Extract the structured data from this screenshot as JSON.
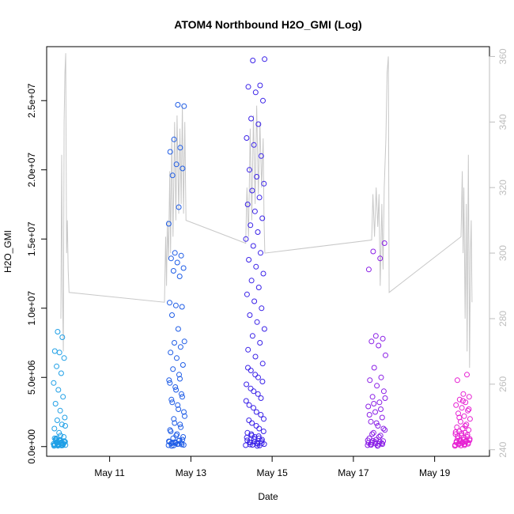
{
  "chart_data": {
    "type": "scatter",
    "title": "ATOM4 Northbound H2O_GMI (Log)",
    "xlabel": "Date",
    "ylabel": "H2O_GMI",
    "x_ticks": [
      "May 11",
      "May 13",
      "May 15",
      "May 17",
      "May 19"
    ],
    "x_tick_days": [
      11,
      13,
      15,
      17,
      19
    ],
    "xlim_days": [
      9.45,
      20.35
    ],
    "ylim": [
      -700000,
      28900000
    ],
    "y_ticks": [
      0,
      5000000,
      10000000,
      15000000,
      20000000,
      25000000
    ],
    "y_tick_labels": [
      "0.0e+00",
      "5.0e+06",
      "1.0e+07",
      "1.5e+07",
      "2.0e+07",
      "2.5e+07"
    ],
    "y2lim": [
      238,
      363
    ],
    "y2_ticks": [
      240,
      260,
      280,
      300,
      320,
      340,
      360
    ],
    "y2_tick_labels": [
      "240",
      "260",
      "280",
      "300",
      "320",
      "340",
      "360"
    ],
    "grid": false,
    "colors": {
      "flight1": "#1e9fe6",
      "flight2": "#1e5ce6",
      "flight3": "#3a22e8",
      "flight4": "#8a1ee6",
      "flight5": "#e61ed2",
      "line": "#c8c8c8",
      "frame": "#000000",
      "right_axis": "#bdbdbd"
    },
    "series": [
      {
        "color_key": "flight1",
        "day_range": [
          9.62,
          9.92
        ],
        "values": [
          200000,
          250000,
          300000,
          400000,
          500000,
          600000,
          150000,
          100000,
          350000,
          450000,
          550000,
          220000,
          180000,
          120000,
          80000,
          260000,
          320000,
          420000,
          150000,
          90000,
          60000,
          110000,
          300000,
          500000,
          700000,
          1000000,
          1300000,
          1600000,
          1900000,
          2100000,
          2600000,
          3100000,
          3600000,
          4100000,
          4600000,
          5300000,
          5800000,
          6400000,
          6800000,
          6900000,
          7900000,
          8300000,
          1500000,
          800000,
          400000,
          200000,
          100000,
          50000,
          300000,
          600000
        ]
      },
      {
        "color_key": "flight2",
        "day_range": [
          12.45,
          12.85
        ],
        "values": [
          100000,
          200000,
          300000,
          500000,
          800000,
          1200000,
          1600000,
          2000000,
          2500000,
          3000000,
          3400000,
          3800000,
          4300000,
          4800000,
          5200000,
          5600000,
          5900000,
          6400000,
          6800000,
          7200000,
          7500000,
          7600000,
          8500000,
          9500000,
          10100000,
          10200000,
          10400000,
          12300000,
          12700000,
          12900000,
          13300000,
          13600000,
          13800000,
          14000000,
          16100000,
          17300000,
          19600000,
          20100000,
          20400000,
          21300000,
          21600000,
          22200000,
          24600000,
          24700000,
          50000,
          150000,
          250000,
          350000,
          450000,
          600000,
          700000,
          900000,
          1100000,
          1400000,
          1700000,
          2200000,
          2700000,
          3200000,
          3600000,
          4100000,
          4600000,
          4900000,
          80000,
          120000,
          180000,
          220000,
          260000,
          320000,
          380000,
          420000
        ]
      },
      {
        "color_key": "flight3",
        "day_range": [
          14.35,
          14.82
        ],
        "values": [
          100000,
          200000,
          300000,
          500000,
          700000,
          1000000,
          1300000,
          1700000,
          2000000,
          2500000,
          3000000,
          3500000,
          4000000,
          4500000,
          5000000,
          5500000,
          6000000,
          6500000,
          7000000,
          7500000,
          8000000,
          8500000,
          9000000,
          9500000,
          10000000,
          10500000,
          11000000,
          11500000,
          12000000,
          12500000,
          13000000,
          13500000,
          14000000,
          14500000,
          15000000,
          15500000,
          16000000,
          16500000,
          17000000,
          17500000,
          18000000,
          18500000,
          19000000,
          19500000,
          20000000,
          21000000,
          21800000,
          22300000,
          23300000,
          23700000,
          25000000,
          25600000,
          26000000,
          26100000,
          27900000,
          28000000,
          50000,
          150000,
          250000,
          350000,
          450000,
          600000,
          800000,
          1100000,
          1500000,
          1900000,
          2300000,
          2800000,
          3300000,
          3800000,
          4200000,
          4700000,
          5200000,
          5700000,
          80000,
          120000,
          180000,
          240000,
          300000,
          400000,
          550000,
          650000,
          750000,
          900000
        ]
      },
      {
        "color_key": "flight4",
        "day_range": [
          17.35,
          17.8
        ],
        "values": [
          100000,
          200000,
          300000,
          400000,
          500000,
          600000,
          800000,
          1000000,
          1200000,
          1500000,
          1800000,
          2100000,
          2500000,
          2900000,
          3200000,
          3600000,
          4000000,
          4400000,
          4800000,
          5000000,
          5700000,
          6600000,
          7300000,
          7600000,
          7800000,
          8000000,
          12800000,
          13600000,
          14100000,
          14700000,
          50000,
          150000,
          250000,
          350000,
          450000,
          700000,
          900000,
          1300000,
          1700000,
          2300000,
          2700000,
          3100000,
          3500000,
          80000,
          120000,
          180000,
          220000,
          280000,
          340000,
          420000
        ]
      },
      {
        "color_key": "flight5",
        "day_range": [
          19.5,
          19.88
        ],
        "values": [
          50000,
          100000,
          150000,
          200000,
          250000,
          300000,
          350000,
          400000,
          450000,
          500000,
          600000,
          700000,
          800000,
          900000,
          1000000,
          1100000,
          1200000,
          1300000,
          1400000,
          1600000,
          1800000,
          2000000,
          2200000,
          2400000,
          2600000,
          2800000,
          3000000,
          3200000,
          3400000,
          3600000,
          3800000,
          4800000,
          5200000,
          80000,
          120000,
          180000,
          220000,
          280000,
          320000,
          380000,
          420000,
          480000,
          550000,
          650000,
          750000,
          850000,
          950000,
          1050000,
          1500000,
          2100000,
          2700000,
          3300000
        ]
      }
    ],
    "secondary_line": {
      "axis": "right",
      "points": [
        [
          9.8,
          280
        ],
        [
          9.82,
          330
        ],
        [
          9.84,
          290
        ],
        [
          9.86,
          270
        ],
        [
          9.88,
          340
        ],
        [
          9.9,
          355
        ],
        [
          9.92,
          361
        ],
        [
          9.94,
          300
        ],
        [
          9.96,
          310
        ],
        [
          9.98,
          295
        ],
        [
          10.0,
          288
        ],
        [
          12.35,
          285
        ],
        [
          12.38,
          305
        ],
        [
          12.4,
          290
        ],
        [
          12.42,
          310
        ],
        [
          12.45,
          298
        ],
        [
          12.48,
          325
        ],
        [
          12.5,
          300
        ],
        [
          12.53,
          335
        ],
        [
          12.56,
          305
        ],
        [
          12.6,
          340
        ],
        [
          12.63,
          310
        ],
        [
          12.66,
          342
        ],
        [
          12.7,
          312
        ],
        [
          12.73,
          338
        ],
        [
          12.76,
          315
        ],
        [
          12.79,
          345
        ],
        [
          12.82,
          312
        ],
        [
          12.85,
          340
        ],
        [
          12.88,
          310
        ],
        [
          14.35,
          303
        ],
        [
          14.38,
          320
        ],
        [
          14.42,
          305
        ],
        [
          14.46,
          338
        ],
        [
          14.5,
          310
        ],
        [
          14.54,
          342
        ],
        [
          14.58,
          315
        ],
        [
          14.62,
          345
        ],
        [
          14.66,
          318
        ],
        [
          14.7,
          340
        ],
        [
          14.74,
          320
        ],
        [
          14.78,
          335
        ],
        [
          14.8,
          310
        ],
        [
          14.82,
          300
        ],
        [
          17.45,
          304
        ],
        [
          17.48,
          318
        ],
        [
          17.52,
          305
        ],
        [
          17.56,
          320
        ],
        [
          17.6,
          308
        ],
        [
          17.63,
          318
        ],
        [
          17.66,
          290
        ],
        [
          17.7,
          315
        ],
        [
          17.73,
          295
        ],
        [
          17.76,
          320
        ],
        [
          17.8,
          335
        ],
        [
          17.83,
          355
        ],
        [
          17.86,
          360
        ],
        [
          17.88,
          288
        ],
        [
          19.65,
          305
        ],
        [
          19.68,
          325
        ],
        [
          19.7,
          300
        ],
        [
          19.72,
          320
        ],
        [
          19.75,
          280
        ],
        [
          19.78,
          315
        ],
        [
          19.8,
          270
        ],
        [
          19.83,
          330
        ],
        [
          19.86,
          265
        ],
        [
          19.88,
          300
        ],
        [
          19.9,
          310
        ],
        [
          19.92,
          285
        ]
      ]
    }
  }
}
